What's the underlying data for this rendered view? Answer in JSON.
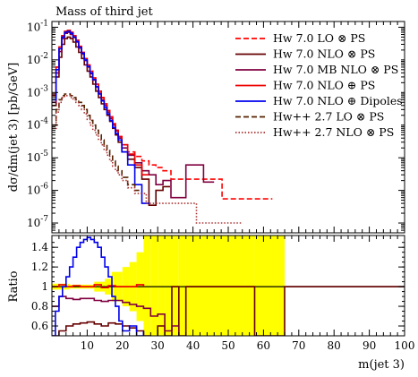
{
  "chart_data": {
    "type": "line",
    "title": "Mass of third jet",
    "ylabel": "dσ/dm(jet 3) [pb/GeV]",
    "xlabel": "m(jet 3)",
    "ratio_ylabel": "Ratio",
    "xlim": [
      0,
      100
    ],
    "ylim": [
      5e-08,
      0.15
    ],
    "yscale": "log",
    "ratio_ylim": [
      0.5,
      1.52
    ],
    "grid": false,
    "legend_position": "top-right",
    "x_ticks": [
      "10",
      "20",
      "30",
      "40",
      "50",
      "60",
      "70",
      "80",
      "90",
      "100"
    ],
    "y_ticks": [
      "10^-1",
      "10^-2",
      "10^-3",
      "10^-4",
      "10^-5",
      "10^-6",
      "10^-7"
    ],
    "ratio_ticks": [
      "0.6",
      "0.8",
      "1",
      "1.2",
      "1.4"
    ],
    "series": [
      {
        "name": "Hw 7.0 LO ⊗ PS",
        "color": "#ff0000",
        "style": "dashed",
        "x": [
          0.8,
          1.6,
          2.4,
          3.2,
          4,
          4.8,
          5.6,
          6.4,
          7.2,
          8,
          8.8,
          9.6,
          10.4,
          11.2,
          12,
          12.8,
          13.6,
          14.4,
          15.2,
          16,
          16.8,
          17.6,
          18.4,
          19.2,
          20.5,
          22.5,
          24.5,
          26.5,
          28.5,
          30.5,
          32.5,
          35,
          61.5
        ],
        "y": [
          0.0009,
          0.006,
          0.025,
          0.055,
          0.075,
          0.08,
          0.07,
          0.055,
          0.04,
          0.025,
          0.017,
          0.011,
          0.007,
          0.0045,
          0.0028,
          0.0018,
          0.0011,
          0.0007,
          0.00045,
          0.00028,
          0.00018,
          0.00011,
          7e-05,
          4.5e-05,
          2.5e-05,
          1.5e-05,
          1.1e-05,
          8e-06,
          6e-06,
          5e-06,
          4e-06,
          2.2e-06,
          5.5e-07
        ]
      },
      {
        "name": "Hw 7.0 NLO ⊗ PS",
        "color": "#660000",
        "style": "solid",
        "x": [
          0.8,
          1.6,
          2.4,
          3.2,
          4,
          4.8,
          5.6,
          6.4,
          7.2,
          8,
          8.8,
          9.6,
          10.4,
          11.2,
          12,
          12.8,
          13.6,
          14.4,
          15.2,
          16,
          16.8,
          17.6,
          18.4,
          19.2,
          20.5,
          22.5,
          24.5,
          26.5,
          28.5,
          30.5,
          32.5
        ],
        "y": [
          0.0004,
          0.003,
          0.012,
          0.03,
          0.045,
          0.05,
          0.045,
          0.035,
          0.025,
          0.017,
          0.011,
          0.007,
          0.0045,
          0.003,
          0.0018,
          0.0011,
          0.0007,
          0.00045,
          0.0003,
          0.0002,
          0.00013,
          8e-05,
          5e-05,
          3e-05,
          1.5e-05,
          9e-06,
          5e-06,
          2.2e-06,
          3.5e-07,
          1e-06,
          1.3e-06
        ]
      },
      {
        "name": "Hw 7.0 MB NLO ⊗ PS",
        "color": "#800040",
        "style": "solid",
        "x": [
          0.8,
          1.6,
          2.4,
          3.2,
          4,
          4.8,
          5.6,
          6.4,
          7.2,
          8,
          8.8,
          9.6,
          10.4,
          11.2,
          12,
          12.8,
          13.6,
          14.4,
          15.2,
          16,
          16.8,
          17.6,
          18.4,
          19.2,
          20.5,
          22.5,
          24.5,
          26.5,
          28.5,
          30.5,
          32.5,
          35,
          41,
          45
        ],
        "y": [
          0.0005,
          0.004,
          0.018,
          0.045,
          0.065,
          0.07,
          0.06,
          0.048,
          0.035,
          0.023,
          0.015,
          0.0095,
          0.006,
          0.0038,
          0.0024,
          0.0015,
          0.00095,
          0.0006,
          0.0004,
          0.00025,
          0.00016,
          0.0001,
          6.5e-05,
          4e-05,
          2e-05,
          1.2e-05,
          7e-06,
          4e-06,
          3e-06,
          1.5e-06,
          2e-06,
          6e-07,
          6e-06,
          1.8e-06
        ]
      },
      {
        "name": "Hw 7.0 NLO ⊕ PS",
        "color": "#ee0000",
        "style": "solid",
        "x": [
          0.8,
          1.6,
          2.4,
          3.2,
          4,
          4.8,
          5.6,
          6.4,
          7.2,
          8,
          8.8,
          9.6,
          10.4,
          11.2,
          12,
          12.8,
          13.6,
          14.4,
          15.2,
          16,
          16.8,
          17.6,
          18.4,
          19.2,
          20.5,
          22.5,
          24.5,
          26.5
        ],
        "y": [
          0.0008,
          0.006,
          0.025,
          0.055,
          0.075,
          0.08,
          0.07,
          0.055,
          0.04,
          0.026,
          0.017,
          0.011,
          0.007,
          0.0045,
          0.0028,
          0.0018,
          0.0011,
          0.0007,
          0.00045,
          0.00028,
          0.00018,
          0.00011,
          7e-05,
          4.5e-05,
          2.5e-05,
          1.3e-05,
          6e-06,
          3e-06
        ]
      },
      {
        "name": "Hw 7.0 NLO ⊕ Dipoles",
        "color": "#0000ee",
        "style": "solid",
        "x": [
          0.8,
          1.6,
          2.4,
          3.2,
          4,
          4.8,
          5.6,
          6.4,
          7.2,
          8,
          8.8,
          9.6,
          10.4,
          11.2,
          12,
          12.8,
          13.6,
          14.4,
          15.2,
          16,
          16.8,
          17.6,
          18.4,
          19.2,
          20.5,
          22.5,
          24.5,
          26.5
        ],
        "y": [
          0.0006,
          0.005,
          0.022,
          0.05,
          0.07,
          0.075,
          0.065,
          0.05,
          0.036,
          0.024,
          0.016,
          0.01,
          0.0063,
          0.004,
          0.0025,
          0.0015,
          0.0009,
          0.00055,
          0.00035,
          0.00022,
          0.00014,
          8.5e-05,
          5.5e-05,
          3.5e-05,
          1.5e-05,
          6e-06,
          1.5e-06,
          4e-07
        ]
      },
      {
        "name": "Hw++ 2.7 LO ⊗ PS",
        "color": "#552200",
        "style": "dashed",
        "x": [
          0.8,
          1.6,
          2.4,
          3.2,
          4,
          4.8,
          5.6,
          6.4,
          7.2,
          8,
          8.8,
          9.6,
          10.4,
          11.2,
          12,
          12.8,
          13.6,
          14.4,
          15.2,
          16,
          16.8,
          17.6,
          18.4,
          19.2,
          20.5,
          22.5,
          24.5
        ],
        "y": [
          0.0001,
          0.0003,
          0.0006,
          0.0008,
          0.0009,
          0.0009,
          0.0008,
          0.0007,
          0.0006,
          0.0005,
          0.0004,
          0.0003,
          0.0002,
          0.00014,
          0.0001,
          7e-05,
          5e-05,
          3.5e-05,
          2.5e-05,
          1.7e-05,
          1.2e-05,
          8e-06,
          5.5e-06,
          4e-06,
          2.5e-06,
          1.5e-06,
          1e-06
        ]
      },
      {
        "name": "Hw++ 2.7 NLO ⊗ PS",
        "color": "#aa3333",
        "style": "dotted",
        "x": [
          0.8,
          1.6,
          2.4,
          3.2,
          4,
          4.8,
          5.6,
          6.4,
          7.2,
          8,
          8.8,
          9.6,
          10.4,
          11.2,
          12,
          12.8,
          13.6,
          14.4,
          15.2,
          16,
          16.8,
          17.6,
          18.4,
          19.2,
          20.5,
          22.5,
          24.5,
          29,
          53
        ],
        "y": [
          8e-05,
          0.00025,
          0.0005,
          0.0007,
          0.0008,
          0.0008,
          0.0007,
          0.0006,
          0.0005,
          0.0004,
          0.0003,
          0.00022,
          0.00015,
          0.0001,
          7e-05,
          5e-05,
          3.5e-05,
          2.5e-05,
          1.7e-05,
          1.2e-05,
          8e-06,
          5.5e-06,
          4e-06,
          3e-06,
          2e-06,
          1.2e-06,
          8e-07,
          4e-07,
          1e-07
        ]
      }
    ],
    "ratio": {
      "band": {
        "color": "#ffff00",
        "x": [
          0,
          5,
          10,
          12,
          15,
          17,
          20,
          22,
          24,
          26,
          28,
          30,
          32,
          34,
          36,
          38,
          57.5,
          66
        ],
        "lo": [
          0.97,
          0.98,
          0.98,
          0.95,
          0.92,
          0.85,
          0.8,
          0.75,
          0.65,
          0.5,
          0.5,
          0.5,
          0.5,
          0.5,
          0.5,
          0.5,
          0.5,
          0.5
        ],
        "hi": [
          1.03,
          1.02,
          1.02,
          1.05,
          1.08,
          1.15,
          1.2,
          1.25,
          1.35,
          1.52,
          1.52,
          1.52,
          1.52,
          1.52,
          1.52,
          1.52,
          1.52,
          1.52
        ]
      },
      "series": [
        {
          "name": "Hw 7.0 NLO ⊗ PS",
          "x": [
            0,
            2,
            4,
            6,
            8,
            10,
            12,
            14,
            16,
            18,
            20,
            22,
            24,
            26,
            28,
            30,
            32,
            34,
            36,
            38,
            57.5,
            66,
            100
          ],
          "y": [
            0.5,
            0.55,
            0.6,
            0.62,
            0.63,
            0.64,
            0.62,
            0.6,
            0.63,
            0.62,
            0.6,
            0.58,
            0.55,
            0.5,
            0.45,
            0.6,
            0.5,
            1.0,
            0.5,
            1.0,
            0.5,
            1.0,
            1.0
          ]
        },
        {
          "name": "Hw 7.0 MB NLO ⊗ PS",
          "x": [
            0,
            2,
            4,
            6,
            8,
            10,
            12,
            14,
            16,
            18,
            20,
            22,
            24,
            26,
            28,
            30,
            32,
            34,
            36
          ],
          "y": [
            0.8,
            0.9,
            0.88,
            0.87,
            0.88,
            0.88,
            0.86,
            0.85,
            0.86,
            0.86,
            0.84,
            0.82,
            0.8,
            0.78,
            0.7,
            0.72,
            0.55,
            0.6,
            0.5
          ]
        },
        {
          "name": "Hw 7.0 NLO ⊕ PS",
          "x": [
            0,
            2,
            4,
            6,
            8,
            10,
            12,
            14,
            16,
            18,
            20,
            22,
            24,
            26
          ],
          "y": [
            1.0,
            1.02,
            1.0,
            1.01,
            1.0,
            1.0,
            1.02,
            0.99,
            1.01,
            1.0,
            1.0,
            1.0,
            1.02,
            1.0
          ]
        },
        {
          "name": "Hw 7.0 NLO ⊕ Dipoles",
          "x": [
            0,
            1,
            2,
            3,
            4,
            5,
            6,
            7,
            8,
            9,
            10,
            11,
            12,
            13,
            14,
            15,
            16,
            17,
            18,
            19,
            20,
            22,
            24,
            26
          ],
          "y": [
            0.5,
            0.75,
            0.9,
            1.0,
            1.1,
            1.2,
            1.3,
            1.4,
            1.45,
            1.48,
            1.5,
            1.48,
            1.45,
            1.4,
            1.3,
            1.2,
            1.1,
            0.9,
            0.8,
            0.65,
            0.55,
            0.6,
            0.5,
            0.55
          ]
        }
      ]
    }
  }
}
